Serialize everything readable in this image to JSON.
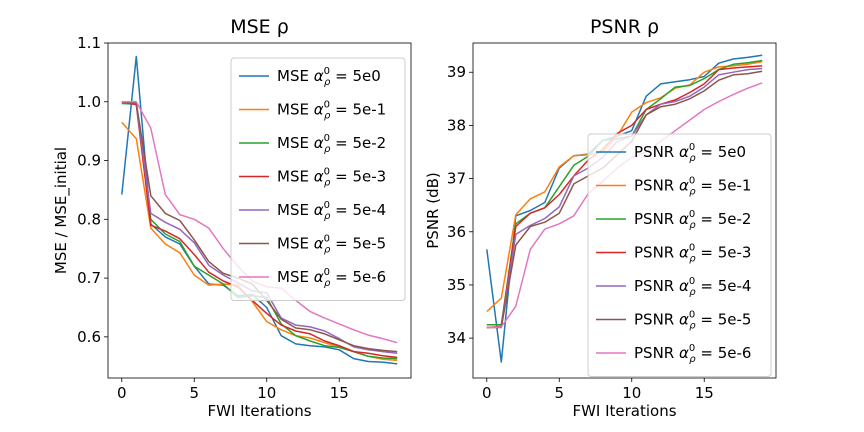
{
  "chart_data": [
    {
      "type": "line",
      "title": "MSE ρ",
      "xlabel": "FWI Iterations",
      "ylabel": "MSE / MSE_initial",
      "xlim": [
        -0.95,
        19.95
      ],
      "ylim": [
        0.53,
        1.1
      ],
      "xticks": [
        0,
        5,
        10,
        15
      ],
      "yticks": [
        0.6,
        0.7,
        0.8,
        0.9,
        1.0,
        1.1
      ],
      "ytick_labels": [
        "0.6",
        "0.7",
        "0.8",
        "0.9",
        "1.0",
        "1.1"
      ],
      "legend_position": "upper-right",
      "x": [
        0,
        1,
        2,
        3,
        4,
        5,
        6,
        7,
        8,
        9,
        10,
        11,
        12,
        13,
        14,
        15,
        16,
        17,
        18,
        19
      ],
      "series": [
        {
          "name": "5e0",
          "legend": "MSE α = 5e0",
          "color": "#1f77b4",
          "values": [
            0.842,
            1.077,
            0.792,
            0.77,
            0.758,
            0.72,
            0.69,
            0.688,
            0.67,
            0.672,
            0.65,
            0.602,
            0.588,
            0.585,
            0.583,
            0.578,
            0.563,
            0.558,
            0.557,
            0.554
          ]
        },
        {
          "name": "5e-1",
          "legend": "MSE α = 5e-1",
          "color": "#ff7f0e",
          "values": [
            0.965,
            0.937,
            0.785,
            0.758,
            0.743,
            0.705,
            0.688,
            0.69,
            0.688,
            0.66,
            0.626,
            0.612,
            0.602,
            0.598,
            0.59,
            0.583,
            0.575,
            0.567,
            0.562,
            0.56
          ]
        },
        {
          "name": "5e-2",
          "legend": "MSE α = 5e-2",
          "color": "#2ca02c",
          "values": [
            0.997,
            0.996,
            0.8,
            0.775,
            0.762,
            0.72,
            0.705,
            0.69,
            0.667,
            0.67,
            0.667,
            0.622,
            0.602,
            0.593,
            0.585,
            0.582,
            0.575,
            0.567,
            0.564,
            0.563
          ]
        },
        {
          "name": "5e-3",
          "legend": "MSE α = 5e-3",
          "color": "#d62728",
          "values": [
            1.0,
            0.995,
            0.79,
            0.78,
            0.767,
            0.74,
            0.71,
            0.695,
            0.685,
            0.662,
            0.64,
            0.62,
            0.61,
            0.605,
            0.593,
            0.585,
            0.575,
            0.572,
            0.568,
            0.565
          ]
        },
        {
          "name": "5e-4",
          "legend": "MSE α = 5e-4",
          "color": "#9467bd",
          "values": [
            1.0,
            0.997,
            0.81,
            0.795,
            0.783,
            0.76,
            0.722,
            0.705,
            0.692,
            0.678,
            0.675,
            0.632,
            0.62,
            0.617,
            0.61,
            0.597,
            0.583,
            0.578,
            0.575,
            0.572
          ]
        },
        {
          "name": "5e-5",
          "legend": "MSE α = 5e-5",
          "color": "#8c564b",
          "values": [
            0.999,
            0.998,
            0.84,
            0.81,
            0.798,
            0.765,
            0.728,
            0.708,
            0.7,
            0.69,
            0.662,
            0.63,
            0.615,
            0.612,
            0.605,
            0.595,
            0.585,
            0.58,
            0.577,
            0.575
          ]
        },
        {
          "name": "5e-6",
          "legend": "MSE α = 5e-6",
          "color": "#e377c2",
          "values": [
            1.0,
            1.0,
            0.955,
            0.842,
            0.808,
            0.8,
            0.785,
            0.75,
            0.72,
            0.695,
            0.685,
            0.683,
            0.662,
            0.643,
            0.632,
            0.622,
            0.612,
            0.603,
            0.597,
            0.59
          ]
        }
      ]
    },
    {
      "type": "line",
      "title": "PSNR ρ",
      "xlabel": "FWI Iterations",
      "ylabel": "PSNR (dB)",
      "xlim": [
        -0.95,
        19.95
      ],
      "ylim": [
        33.25,
        39.55
      ],
      "xticks": [
        0,
        5,
        10,
        15
      ],
      "yticks": [
        34,
        35,
        36,
        37,
        38,
        39
      ],
      "ytick_labels": [
        "34",
        "35",
        "36",
        "37",
        "38",
        "39"
      ],
      "legend_position": "center-right",
      "x": [
        0,
        1,
        2,
        3,
        4,
        5,
        6,
        7,
        8,
        9,
        10,
        11,
        12,
        13,
        14,
        15,
        16,
        17,
        18,
        19
      ],
      "series": [
        {
          "name": "5e0",
          "legend": "PSNR α = 5e0",
          "color": "#1f77b4",
          "values": [
            35.67,
            33.55,
            36.3,
            36.4,
            36.55,
            37.2,
            37.43,
            37.46,
            37.72,
            37.8,
            37.9,
            38.55,
            38.78,
            38.82,
            38.86,
            38.92,
            39.17,
            39.25,
            39.28,
            39.32
          ]
        },
        {
          "name": "5e-1",
          "legend": "PSNR α = 5e-1",
          "color": "#ff7f0e",
          "values": [
            34.5,
            34.75,
            36.32,
            36.62,
            36.75,
            37.22,
            37.43,
            37.45,
            37.5,
            37.8,
            38.25,
            38.43,
            38.52,
            38.7,
            38.76,
            39.0,
            39.1,
            39.12,
            39.15,
            39.2
          ]
        },
        {
          "name": "5e-2",
          "legend": "PSNR α = 5e-2",
          "color": "#2ca02c",
          "values": [
            34.25,
            34.25,
            36.15,
            36.35,
            36.45,
            36.85,
            37.25,
            37.42,
            37.72,
            37.75,
            37.8,
            38.3,
            38.5,
            38.72,
            38.75,
            38.88,
            39.05,
            39.15,
            39.18,
            39.22
          ]
        },
        {
          "name": "5e-3",
          "legend": "PSNR α = 5e-3",
          "color": "#d62728",
          "values": [
            34.2,
            34.22,
            36.1,
            36.35,
            36.45,
            36.7,
            37.05,
            37.35,
            37.55,
            37.85,
            38.0,
            38.3,
            38.4,
            38.48,
            38.62,
            38.78,
            39.05,
            39.08,
            39.1,
            39.12
          ]
        },
        {
          "name": "5e-4",
          "legend": "PSNR α = 5e-4",
          "color": "#9467bd",
          "values": [
            34.2,
            34.21,
            35.95,
            36.12,
            36.25,
            36.47,
            37.05,
            37.2,
            37.4,
            37.7,
            37.8,
            38.2,
            38.4,
            38.45,
            38.55,
            38.72,
            38.95,
            39.0,
            39.05,
            39.07
          ]
        },
        {
          "name": "5e-5",
          "legend": "PSNR α = 5e-5",
          "color": "#8c564b",
          "values": [
            34.2,
            34.2,
            35.75,
            36.1,
            36.18,
            36.35,
            36.9,
            37.05,
            37.2,
            37.45,
            37.7,
            38.2,
            38.35,
            38.4,
            38.5,
            38.65,
            38.85,
            38.95,
            38.97,
            39.02
          ]
        },
        {
          "name": "5e-6",
          "legend": "PSNR α = 5e-6",
          "color": "#e377c2",
          "values": [
            34.2,
            34.21,
            34.6,
            35.67,
            36.05,
            36.15,
            36.3,
            36.72,
            36.95,
            37.2,
            37.4,
            37.5,
            37.7,
            37.9,
            38.1,
            38.3,
            38.45,
            38.58,
            38.7,
            38.8
          ]
        }
      ]
    }
  ]
}
